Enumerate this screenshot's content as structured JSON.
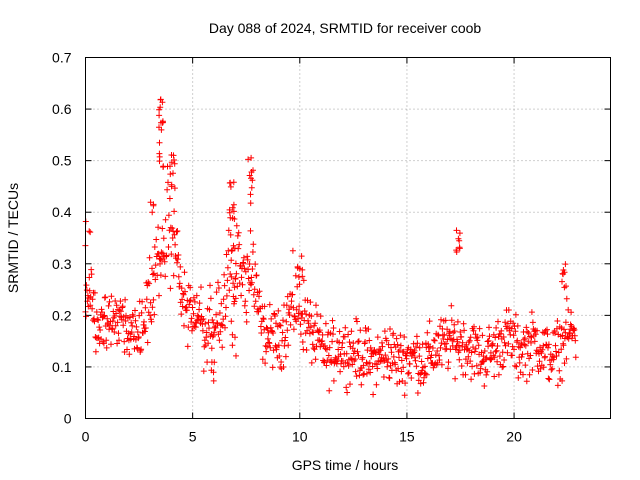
{
  "chart_data": {
    "type": "scatter",
    "title": "Day 088 of 2024, SRMTID for receiver coob",
    "xlabel": "GPS time / hours",
    "ylabel": "SRMTID / TECUs",
    "xlim": [
      0,
      24.5
    ],
    "ylim": [
      0,
      0.7
    ],
    "xticks": [
      0,
      5,
      10,
      15,
      20
    ],
    "xtick_labels": [
      "0",
      "5",
      "10",
      "15",
      "20"
    ],
    "yticks": [
      0,
      0.1,
      0.2,
      0.3,
      0.4,
      0.5,
      0.6,
      0.7
    ],
    "ytick_labels": [
      "0",
      "0.1",
      "0.2",
      "0.3",
      "0.4",
      "0.5",
      "0.6",
      "0.7"
    ],
    "grid": true,
    "marker": "+",
    "color": "#ff0000",
    "series": [
      {
        "name": "SRMTID",
        "trend": [
          [
            0.0,
            0.24,
            0.05
          ],
          [
            0.2,
            0.22,
            0.05
          ],
          [
            0.5,
            0.19,
            0.05
          ],
          [
            0.8,
            0.18,
            0.04
          ],
          [
            1.0,
            0.2,
            0.05
          ],
          [
            1.3,
            0.19,
            0.04
          ],
          [
            1.6,
            0.2,
            0.04
          ],
          [
            2.0,
            0.18,
            0.04
          ],
          [
            2.4,
            0.17,
            0.04
          ],
          [
            2.7,
            0.18,
            0.04
          ],
          [
            3.0,
            0.24,
            0.06
          ],
          [
            3.3,
            0.28,
            0.06
          ],
          [
            3.6,
            0.34,
            0.08
          ],
          [
            3.9,
            0.37,
            0.08
          ],
          [
            4.2,
            0.33,
            0.06
          ],
          [
            4.5,
            0.24,
            0.05
          ],
          [
            4.8,
            0.2,
            0.04
          ],
          [
            5.2,
            0.2,
            0.05
          ],
          [
            5.6,
            0.17,
            0.05
          ],
          [
            6.0,
            0.18,
            0.05
          ],
          [
            6.4,
            0.2,
            0.05
          ],
          [
            6.8,
            0.32,
            0.07
          ],
          [
            7.1,
            0.3,
            0.06
          ],
          [
            7.5,
            0.28,
            0.07
          ],
          [
            7.8,
            0.3,
            0.08
          ],
          [
            8.2,
            0.17,
            0.04
          ],
          [
            8.6,
            0.16,
            0.04
          ],
          [
            9.0,
            0.15,
            0.04
          ],
          [
            9.4,
            0.19,
            0.05
          ],
          [
            9.8,
            0.23,
            0.06
          ],
          [
            10.2,
            0.2,
            0.05
          ],
          [
            10.6,
            0.16,
            0.04
          ],
          [
            11.0,
            0.14,
            0.04
          ],
          [
            11.4,
            0.12,
            0.04
          ],
          [
            11.8,
            0.14,
            0.04
          ],
          [
            12.2,
            0.13,
            0.04
          ],
          [
            12.6,
            0.13,
            0.04
          ],
          [
            13.0,
            0.12,
            0.04
          ],
          [
            13.4,
            0.11,
            0.04
          ],
          [
            13.8,
            0.12,
            0.04
          ],
          [
            14.2,
            0.13,
            0.04
          ],
          [
            14.6,
            0.11,
            0.04
          ],
          [
            15.0,
            0.12,
            0.04
          ],
          [
            15.4,
            0.12,
            0.04
          ],
          [
            15.8,
            0.11,
            0.04
          ],
          [
            16.2,
            0.13,
            0.04
          ],
          [
            16.6,
            0.14,
            0.04
          ],
          [
            17.0,
            0.15,
            0.04
          ],
          [
            17.4,
            0.15,
            0.04
          ],
          [
            17.8,
            0.14,
            0.04
          ],
          [
            18.2,
            0.13,
            0.04
          ],
          [
            18.6,
            0.12,
            0.04
          ],
          [
            19.0,
            0.13,
            0.04
          ],
          [
            19.4,
            0.15,
            0.04
          ],
          [
            19.8,
            0.16,
            0.04
          ],
          [
            20.2,
            0.13,
            0.04
          ],
          [
            20.6,
            0.14,
            0.04
          ],
          [
            21.0,
            0.15,
            0.04
          ],
          [
            21.4,
            0.13,
            0.04
          ],
          [
            21.8,
            0.12,
            0.04
          ],
          [
            22.2,
            0.14,
            0.04
          ],
          [
            22.6,
            0.17,
            0.04
          ],
          [
            22.9,
            0.16,
            0.04
          ]
        ],
        "clusters": [
          [
            3.55,
            0.54,
            0.06,
            14
          ],
          [
            3.6,
            0.6,
            0.02,
            4
          ],
          [
            4.05,
            0.48,
            0.04,
            10
          ],
          [
            7.7,
            0.46,
            0.05,
            10
          ],
          [
            6.85,
            0.42,
            0.04,
            10
          ],
          [
            6.9,
            0.2,
            0.08,
            10
          ],
          [
            0.1,
            0.36,
            0.03,
            4
          ],
          [
            3.1,
            0.4,
            0.03,
            4
          ],
          [
            17.35,
            0.36,
            0.05,
            8
          ],
          [
            22.3,
            0.28,
            0.03,
            8
          ],
          [
            10.0,
            0.29,
            0.03,
            6
          ],
          [
            5.9,
            0.09,
            0.02,
            5
          ]
        ]
      }
    ]
  }
}
